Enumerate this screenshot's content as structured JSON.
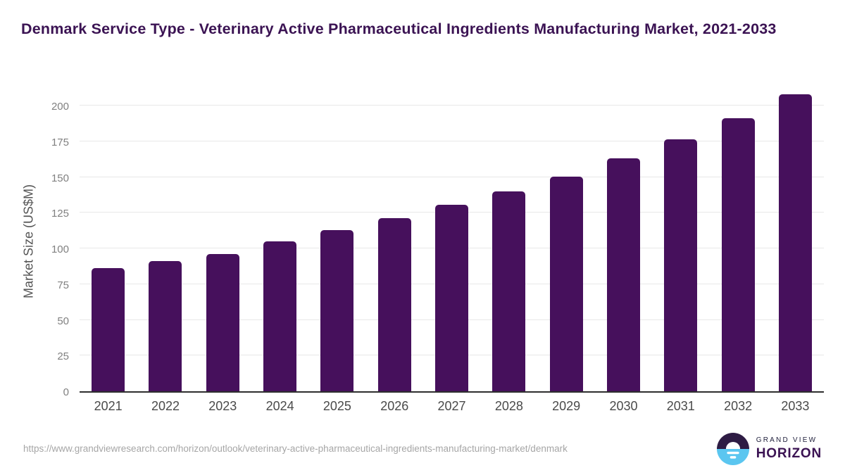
{
  "chart_data": {
    "type": "bar",
    "title": "Denmark Service Type - Veterinary Active Pharmaceutical Ingredients Manufacturing Market, 2021-2033",
    "xlabel": "",
    "ylabel": "Market Size (US$M)",
    "categories": [
      "2021",
      "2022",
      "2023",
      "2024",
      "2025",
      "2026",
      "2027",
      "2028",
      "2029",
      "2030",
      "2031",
      "2032",
      "2033"
    ],
    "values": [
      86.5,
      91,
      96,
      105,
      113,
      121.5,
      130.5,
      140,
      150.5,
      163,
      176.5,
      191.5,
      208
    ],
    "yticks": [
      0,
      25,
      50,
      75,
      100,
      125,
      150,
      175,
      200
    ],
    "ylim": [
      0,
      212
    ],
    "grid": true,
    "legend_position": "none",
    "bar_color": "#46105c"
  },
  "footer": {
    "source_url": "https://www.grandviewresearch.com/horizon/outlook/veterinary-active-pharmaceutical-ingredients-manufacturing-market/denmark",
    "logo": {
      "top": "GRAND VIEW",
      "bottom": "HORIZON"
    }
  },
  "theme": {
    "bar": "#46105c",
    "title": "#3b1353",
    "axis": "#2e2e2e",
    "grid": "#e8e8e8",
    "tick": "#808080",
    "xlabel": "#4a4a4a",
    "url": "#a6a6a6",
    "logoNavy": "#23233f",
    "logoPurple": "#3b1353",
    "logoIconNavy": "#2e1c44",
    "logoIconBlue": "#5bc6f0"
  }
}
